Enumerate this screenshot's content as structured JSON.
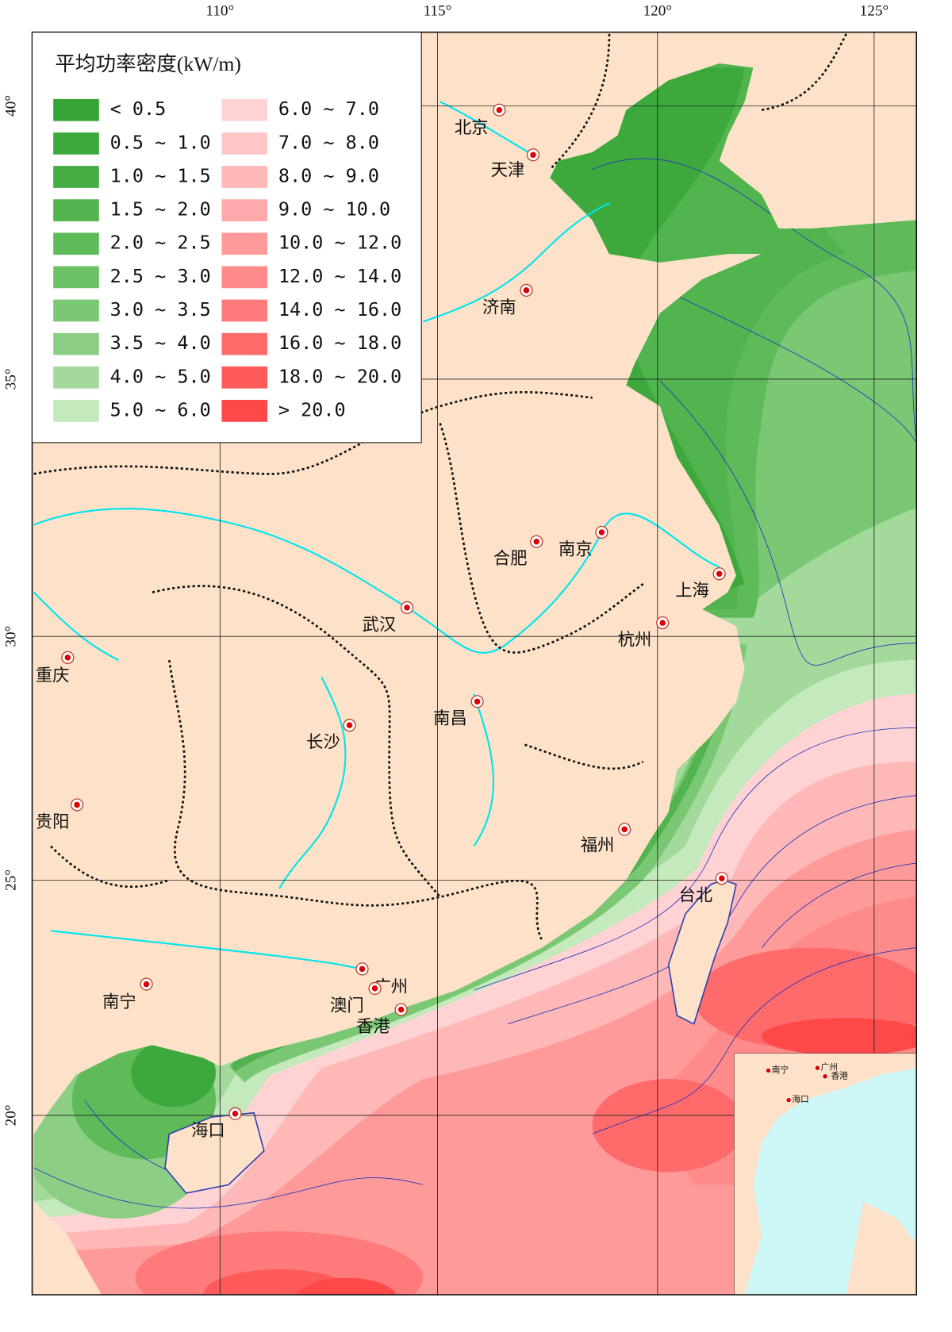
{
  "legend": {
    "title": "平均功率密度(kW/m)",
    "items": [
      {
        "label": "< 0.5",
        "color": "#36a336"
      },
      {
        "label": "0.5 ~ 1.0",
        "color": "#3da83c"
      },
      {
        "label": "1.0 ~ 1.5",
        "color": "#46ad44"
      },
      {
        "label": "1.5 ~ 2.0",
        "color": "#52b44f"
      },
      {
        "label": "2.0 ~ 2.5",
        "color": "#5fba5a"
      },
      {
        "label": "2.5 ~ 3.0",
        "color": "#6cc066"
      },
      {
        "label": "3.0 ~ 3.5",
        "color": "#7bc874"
      },
      {
        "label": "3.5 ~ 4.0",
        "color": "#8ccf84"
      },
      {
        "label": "4.0 ~ 5.0",
        "color": "#a3da9b"
      },
      {
        "label": "5.0 ~ 6.0",
        "color": "#c4e9bd"
      },
      {
        "label": "6.0 ~ 7.0",
        "color": "#ffd3d3"
      },
      {
        "label": "7.0 ~ 8.0",
        "color": "#ffc6c6"
      },
      {
        "label": "8.0 ~ 9.0",
        "color": "#ffb8b8"
      },
      {
        "label": "9.0 ~ 10.0",
        "color": "#ffaaaa"
      },
      {
        "label": "10.0 ~ 12.0",
        "color": "#ff9a9a"
      },
      {
        "label": "12.0 ~ 14.0",
        "color": "#ff8a8a"
      },
      {
        "label": "14.0 ~ 16.0",
        "color": "#ff7a7a"
      },
      {
        "label": "16.0 ~ 18.0",
        "color": "#ff6a6a"
      },
      {
        "label": "18.0 ~ 20.0",
        "color": "#ff5a5a"
      },
      {
        "label": "> 20.0",
        "color": "#ff4848"
      }
    ]
  },
  "longitude_labels": [
    "110°",
    "115°",
    "120°",
    "125°"
  ],
  "latitude_labels": [
    "40°",
    "35°",
    "30°",
    "25°",
    "20°"
  ],
  "cities": [
    "北京",
    "天津",
    "济南",
    "合肥",
    "南京",
    "上海",
    "杭州",
    "武汉",
    "重庆",
    "长沙",
    "南昌",
    "贵阳",
    "福州",
    "台北",
    "南宁",
    "广州",
    "澳门",
    "香港",
    "海口"
  ],
  "inset_cities": [
    "南宁",
    "广州",
    "香港",
    "海口"
  ]
}
